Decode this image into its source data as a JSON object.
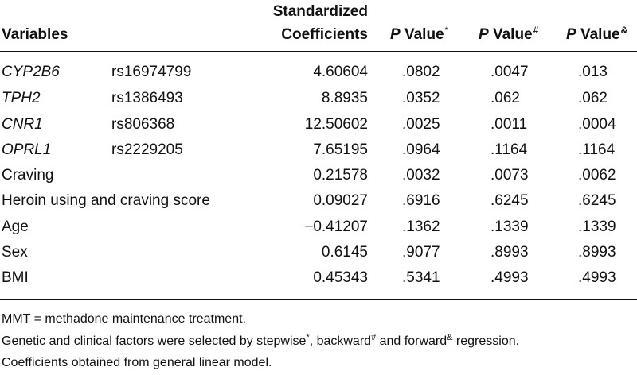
{
  "header": {
    "variables": "Variables",
    "std_coef_line1": "Standardized",
    "std_coef_line2": "Coefficients",
    "p_label": "P",
    "value_word": "Value",
    "mark_stepwise": "*",
    "mark_backward": "#",
    "mark_forward": "&"
  },
  "rows": [
    {
      "gene": "CYP2B6",
      "snp": "rs16974799",
      "coef": "4.60604",
      "p1": ".0802",
      "p2": ".0047",
      "p3": ".013"
    },
    {
      "gene": "TPH2",
      "snp": "rs1386493",
      "coef": "8.8935",
      "p1": ".0352",
      "p2": ".062",
      "p3": ".062"
    },
    {
      "gene": "CNR1",
      "snp": "rs806368",
      "coef": "12.50602",
      "p1": ".0025",
      "p2": ".0011",
      "p3": ".0004"
    },
    {
      "gene": "OPRL1",
      "snp": "rs2229205",
      "coef": "7.65195",
      "p1": ".0964",
      "p2": ".1164",
      "p3": ".1164"
    },
    {
      "gene": "Craving",
      "snp": "",
      "coef": "0.21578",
      "p1": ".0032",
      "p2": ".0073",
      "p3": ".0062"
    },
    {
      "gene": "Heroin using and craving score",
      "snp": "",
      "coef": "0.09027",
      "p1": ".6916",
      "p2": ".6245",
      "p3": ".6245"
    },
    {
      "gene": "Age",
      "snp": "",
      "coef": "−0.41207",
      "p1": ".1362",
      "p2": ".1339",
      "p3": ".1339"
    },
    {
      "gene": "Sex",
      "snp": "",
      "coef": "0.6145",
      "p1": ".9077",
      "p2": ".8993",
      "p3": ".8993"
    },
    {
      "gene": "BMI",
      "snp": "",
      "coef": "0.45343",
      "p1": ".5341",
      "p2": ".4993",
      "p3": ".4993"
    }
  ],
  "notes": {
    "abbrev": "MMT = methadone maintenance treatment.",
    "selection_a": "Genetic and clinical factors were selected by stepwise",
    "selection_b": ", backward",
    "selection_c": " and forward",
    "selection_d": " regression.",
    "model": "Coefficients obtained from general linear model."
  }
}
